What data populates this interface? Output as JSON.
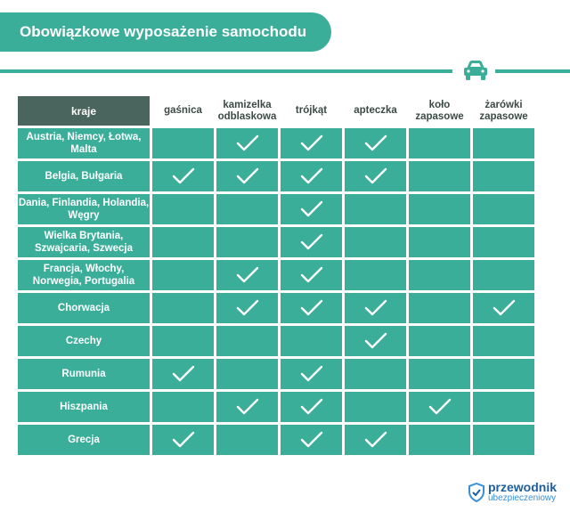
{
  "title": "Obowiązkowe wyposażenie samochodu",
  "colors": {
    "accent": "#3aae99",
    "header_dark": "#4a655d",
    "logo_blue": "#1d5f9e"
  },
  "table": {
    "corner_label": "kraje",
    "columns": [
      "gaśnica",
      "kamizelka odblaskowa",
      "trójkąt",
      "apteczka",
      "koło zapasowe",
      "żarówki zapasowe"
    ],
    "rows": [
      {
        "country": "Austria, Niemcy, Łotwa, Malta",
        "checks": [
          false,
          true,
          true,
          true,
          false,
          false
        ]
      },
      {
        "country": "Belgia, Bułgaria",
        "checks": [
          true,
          true,
          true,
          true,
          false,
          false
        ]
      },
      {
        "country": "Dania, Finlandia, Holandia, Węgry",
        "checks": [
          false,
          false,
          true,
          false,
          false,
          false
        ]
      },
      {
        "country": "Wielka Brytania, Szwajcaria, Szwecja",
        "checks": [
          false,
          false,
          true,
          false,
          false,
          false
        ]
      },
      {
        "country": "Francja, Włochy, Norwegia, Portugalia",
        "checks": [
          false,
          true,
          true,
          false,
          false,
          false
        ]
      },
      {
        "country": "Chorwacja",
        "checks": [
          false,
          true,
          true,
          true,
          false,
          true
        ]
      },
      {
        "country": "Czechy",
        "checks": [
          false,
          false,
          false,
          true,
          false,
          false
        ]
      },
      {
        "country": "Rumunia",
        "checks": [
          true,
          false,
          true,
          false,
          false,
          false
        ]
      },
      {
        "country": "Hiszpania",
        "checks": [
          false,
          true,
          true,
          false,
          true,
          false
        ]
      },
      {
        "country": "Grecja",
        "checks": [
          true,
          false,
          true,
          true,
          false,
          false
        ]
      }
    ]
  },
  "logo": {
    "line1": "przewodnik",
    "line2": "ubezpieczeniowy",
    "icon": "shield-icon"
  },
  "icons": {
    "header": "car-icon",
    "check": "checkmark-icon"
  }
}
